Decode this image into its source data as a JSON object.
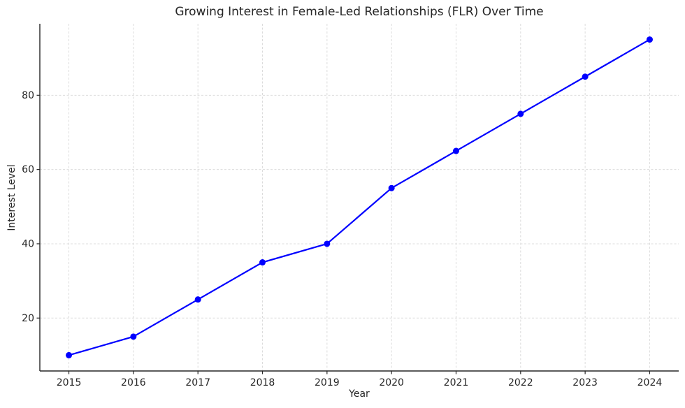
{
  "chart_data": {
    "type": "line",
    "title": "Growing Interest in Female-Led Relationships (FLR) Over Time",
    "xlabel": "Year",
    "ylabel": "Interest Level",
    "x": [
      2015,
      2016,
      2017,
      2018,
      2019,
      2020,
      2021,
      2022,
      2023,
      2024
    ],
    "values": [
      10,
      15,
      25,
      35,
      40,
      55,
      65,
      75,
      85,
      95
    ],
    "series_name": "Interest Level",
    "xticks": [
      2015,
      2016,
      2017,
      2018,
      2019,
      2020,
      2021,
      2022,
      2023,
      2024
    ],
    "yticks": [
      20,
      40,
      60,
      80
    ],
    "xlim": [
      2014.55,
      2024.45
    ],
    "ylim": [
      5.75,
      99.25
    ],
    "grid": true,
    "grid_style": "dashed",
    "legend_position": "none",
    "marker": "circle",
    "colors": {
      "line": "#0000ff",
      "marker": "#0000ff",
      "grid": "#dcdcdc",
      "spine": "#262626",
      "text": "#262626",
      "background": "#ffffff"
    }
  }
}
